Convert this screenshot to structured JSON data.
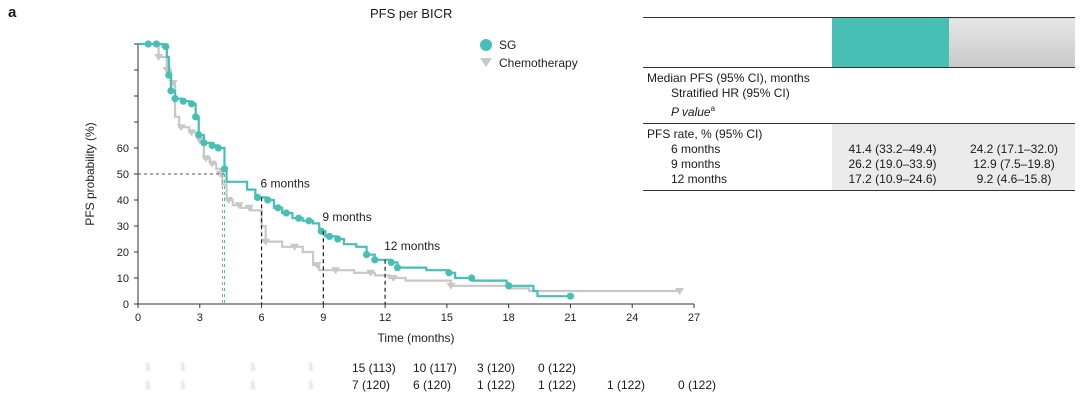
{
  "panel_label": "a",
  "chart_title": "PFS per BICR",
  "colors": {
    "sg": "#47bfb5",
    "chemo": "#c8c8c8",
    "axis": "#333333"
  },
  "chart_data": {
    "type": "line",
    "title": "PFS per BICR",
    "xlabel": "Time (months)",
    "ylabel": "PFS probability (%)",
    "xlim": [
      0,
      27
    ],
    "ylim": [
      0,
      100
    ],
    "x_ticks": [
      0,
      3,
      6,
      9,
      12,
      15,
      18,
      21,
      24,
      27
    ],
    "y_ticks_labeled": [
      0,
      10,
      20,
      30,
      40,
      50,
      60
    ],
    "legend": {
      "position": "top-right",
      "entries": [
        "SG",
        "Chemotherapy"
      ]
    },
    "series": [
      {
        "name": "SG",
        "points": [
          [
            0,
            100
          ],
          [
            0.8,
            100
          ],
          [
            1.2,
            99
          ],
          [
            1.4,
            95
          ],
          [
            1.5,
            88
          ],
          [
            1.6,
            82
          ],
          [
            1.8,
            79
          ],
          [
            2.1,
            78
          ],
          [
            2.5,
            77
          ],
          [
            2.8,
            72
          ],
          [
            2.95,
            65
          ],
          [
            3.2,
            62
          ],
          [
            3.6,
            61
          ],
          [
            3.9,
            60
          ],
          [
            4.2,
            52
          ],
          [
            4.3,
            47
          ],
          [
            4.9,
            47
          ],
          [
            5.3,
            44
          ],
          [
            5.7,
            41
          ],
          [
            6.2,
            40
          ],
          [
            6.6,
            37
          ],
          [
            7.0,
            35
          ],
          [
            7.5,
            33
          ],
          [
            8.0,
            32
          ],
          [
            8.5,
            31
          ],
          [
            8.8,
            28
          ],
          [
            9.1,
            26
          ],
          [
            9.6,
            25
          ],
          [
            10.0,
            23
          ],
          [
            10.6,
            22
          ],
          [
            11.1,
            19
          ],
          [
            11.5,
            17
          ],
          [
            12.3,
            16
          ],
          [
            12.6,
            14
          ],
          [
            14.0,
            13
          ],
          [
            15.1,
            12
          ],
          [
            15.4,
            10
          ],
          [
            16.3,
            9
          ],
          [
            17.9,
            8
          ],
          [
            18.0,
            7
          ],
          [
            19.2,
            5
          ],
          [
            19.4,
            3
          ],
          [
            21.0,
            3
          ]
        ],
        "markers_x": [
          0.5,
          0.9,
          1.35,
          1.5,
          1.6,
          1.8,
          2.2,
          2.6,
          2.8,
          2.95,
          3.2,
          3.6,
          3.9,
          4.2,
          5.8,
          6.3,
          6.8,
          7.2,
          7.8,
          8.3,
          8.9,
          9.3,
          9.7,
          11.1,
          11.5,
          12.3,
          12.6,
          15.1,
          16.2,
          18.0,
          21.0
        ],
        "annotations": [
          {
            "label": "6 months",
            "x": 6
          },
          {
            "label": "9 months",
            "x": 9
          },
          {
            "label": "12 months",
            "x": 12
          }
        ],
        "median_x": 4.2
      },
      {
        "name": "Chemotherapy",
        "points": [
          [
            0,
            100
          ],
          [
            0.6,
            100
          ],
          [
            1.0,
            95
          ],
          [
            1.4,
            90
          ],
          [
            1.6,
            85
          ],
          [
            1.8,
            72
          ],
          [
            2.0,
            68
          ],
          [
            2.5,
            66
          ],
          [
            3.0,
            63
          ],
          [
            3.2,
            56
          ],
          [
            3.5,
            54
          ],
          [
            3.8,
            52
          ],
          [
            4.0,
            50
          ],
          [
            4.1,
            46
          ],
          [
            4.3,
            40
          ],
          [
            4.6,
            38
          ],
          [
            5.0,
            37
          ],
          [
            5.5,
            36
          ],
          [
            6.0,
            30
          ],
          [
            6.2,
            24
          ],
          [
            7.0,
            22
          ],
          [
            8.0,
            20
          ],
          [
            8.5,
            15
          ],
          [
            8.8,
            13
          ],
          [
            10.5,
            12
          ],
          [
            11.5,
            11
          ],
          [
            12.2,
            10
          ],
          [
            13.0,
            9
          ],
          [
            15.1,
            9
          ],
          [
            15.2,
            7
          ],
          [
            18.0,
            6
          ],
          [
            19.0,
            5
          ],
          [
            26.3,
            5
          ]
        ],
        "markers_x": [
          1.0,
          1.4,
          1.7,
          2.1,
          2.6,
          3.0,
          3.3,
          3.6,
          4.0,
          4.4,
          4.9,
          5.4,
          6.2,
          7.6,
          8.7,
          9.6,
          11.3,
          12.4,
          15.2,
          26.3
        ],
        "median_x": 4.1
      }
    ]
  },
  "risk_table": {
    "sg_values": [
      "15 (113)",
      "10 (117)",
      "3 (120)",
      "0 (122)"
    ],
    "chemo_values": [
      "7 (120)",
      "6 (120)",
      "1 (122)",
      "1 (122)",
      "1 (122)",
      "0 (122)"
    ],
    "sg_blurred": [
      "1",
      "1",
      "1",
      "1"
    ],
    "chemo_blurred": [
      "1",
      "1",
      "1",
      "1"
    ]
  },
  "summary_table": {
    "median_label": "Median PFS (95% CI), months",
    "hr_label": "Stratified HR (95% CI)",
    "p_label": "P value",
    "p_superscript": "a",
    "rate_label": "PFS rate, % (95% CI)",
    "rows": [
      {
        "label": "6 months",
        "sg": "41.4 (33.2–49.4)",
        "chemo": "24.2 (17.1–32.0)"
      },
      {
        "label": "9 months",
        "sg": "26.2 (19.0–33.9)",
        "chemo": "12.9 (7.5–19.8)"
      },
      {
        "label": "12 months",
        "sg": "17.2 (10.9–24.6)",
        "chemo": "9.2 (4.6–15.8)"
      }
    ]
  }
}
